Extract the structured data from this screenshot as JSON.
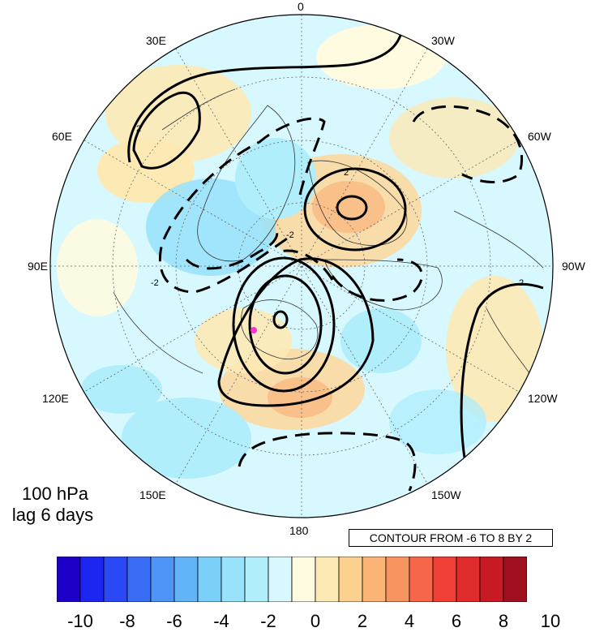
{
  "map": {
    "level": "100 hPa",
    "lag": "lag 6 days",
    "contour_note": "CONTOUR FROM -6 TO 8 BY 2",
    "longitude_labels": {
      "top": "0",
      "bottom": "180",
      "left": "90E",
      "right": "90W",
      "upper_left_1": "30E",
      "upper_left_2": "60E",
      "lower_left_1": "120E",
      "lower_left_2": "150E",
      "upper_right_1": "30W",
      "upper_right_2": "60W",
      "lower_right_1": "120W",
      "lower_right_2": "150W"
    },
    "contour_labels": [
      "2",
      "2",
      "-2",
      "2",
      "-2"
    ],
    "marker_color": "#ff33cc"
  },
  "colorbar": {
    "ticks": [
      "-10",
      "-8",
      "-6",
      "-4",
      "-2",
      "0",
      "2",
      "4",
      "6",
      "8",
      "10"
    ],
    "colors": [
      "#1d00c8",
      "#1c26f0",
      "#2a48f5",
      "#3a6cf5",
      "#4f95f7",
      "#62b3f8",
      "#7bd0fa",
      "#98e2fb",
      "#b0eefc",
      "#d6f8fe",
      "#fffbe0",
      "#fde9b4",
      "#fcd08e",
      "#fbb475",
      "#f8945f",
      "#f66649",
      "#f03f35",
      "#e02c2c",
      "#c81a25",
      "#a00f1e"
    ]
  }
}
